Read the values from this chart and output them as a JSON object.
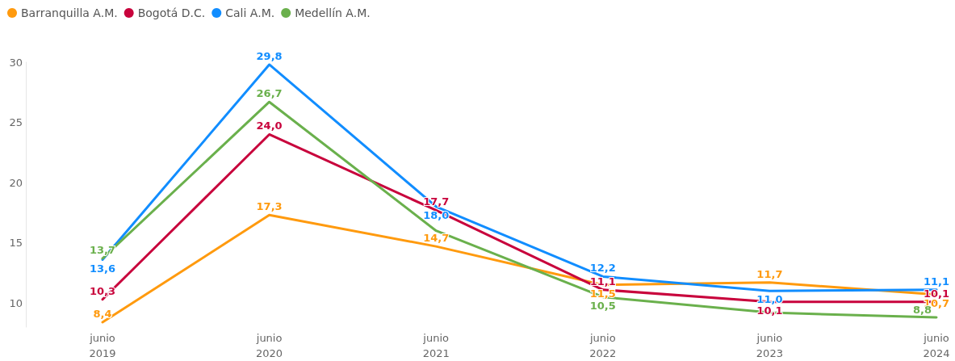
{
  "chart_data": {
    "type": "line",
    "categories": [
      "junio\n2019",
      "junio\n2020",
      "junio\n2021",
      "junio\n2022",
      "junio\n2023",
      "junio\n2024"
    ],
    "series": [
      {
        "name": "Barranquilla A.M.",
        "color": "#ff9a0e",
        "values": [
          8.4,
          17.3,
          14.7,
          11.5,
          11.7,
          10.7
        ],
        "value_labels": [
          "8,4",
          "17,3",
          "14,7",
          "11,5",
          "11,7",
          "10,7"
        ]
      },
      {
        "name": "Bogotá D.C.",
        "color": "#c8033c",
        "values": [
          10.3,
          24.0,
          17.7,
          11.1,
          10.1,
          10.1
        ],
        "value_labels": [
          "10,3",
          "24,0",
          "17,7",
          "11,1",
          "10,1",
          "10,1"
        ]
      },
      {
        "name": "Cali A.M.",
        "color": "#118dff",
        "values": [
          13.6,
          29.8,
          18.0,
          12.2,
          11.0,
          11.1
        ],
        "value_labels": [
          "13,6",
          "29,8",
          "18,0",
          "12,2",
          "11,0",
          "11,1"
        ]
      },
      {
        "name": "Medellín A.M.",
        "color": "#6ab04c",
        "values": [
          13.7,
          26.7,
          16.0,
          10.5,
          9.2,
          8.8
        ],
        "value_labels": [
          "13,7",
          "26,7",
          null,
          "10,5",
          null,
          "8,8"
        ]
      }
    ],
    "ylim": [
      8,
      30
    ],
    "yticks": [
      10,
      15,
      20,
      25,
      30
    ],
    "grid": false,
    "legend": "top left",
    "marker": "none",
    "line_style": "solid"
  }
}
